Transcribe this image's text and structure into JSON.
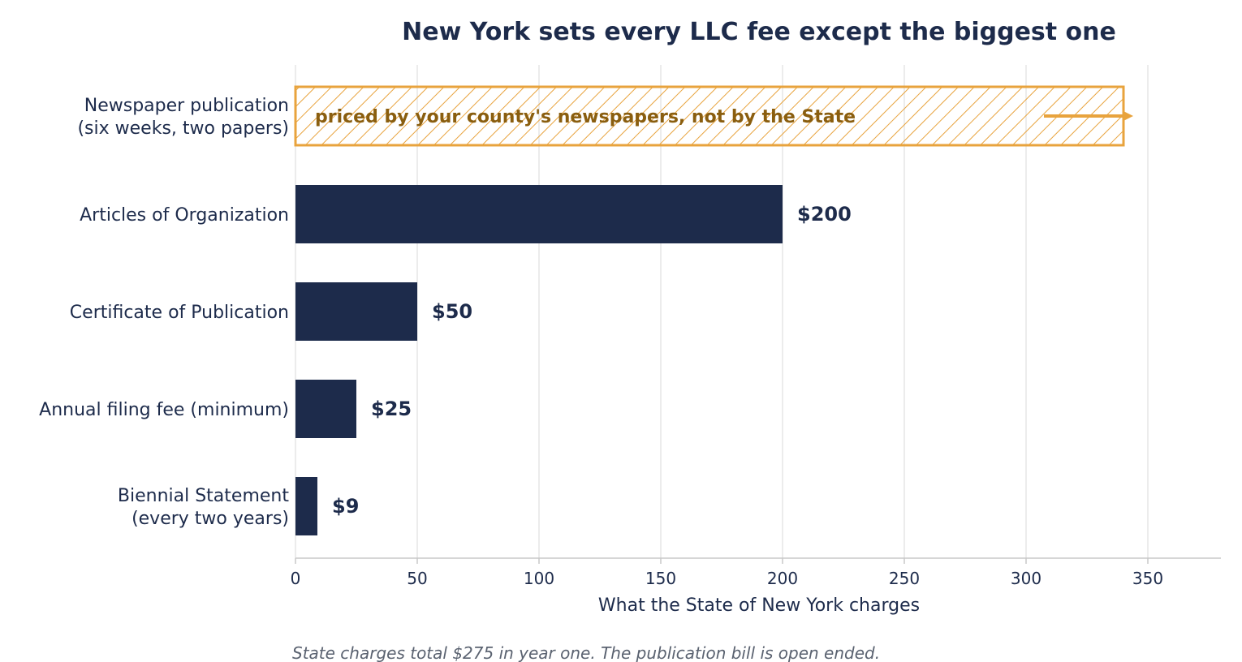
{
  "chart_data": {
    "type": "bar",
    "orientation": "horizontal",
    "title": "New York sets every LLC fee except the biggest one",
    "xlabel": "What the State of New York charges",
    "ylabel": "",
    "xlim": [
      0,
      380
    ],
    "xticks": [
      0,
      50,
      100,
      150,
      200,
      250,
      300,
      350
    ],
    "grid": "vertical",
    "categories": [
      "Newspaper publication\n(six weeks, two papers)",
      "Articles of Organization",
      "Certificate of Publication",
      "Annual filing fee (minimum)",
      "Biennial Statement\n(every two years)"
    ],
    "values": [
      null,
      200,
      50,
      25,
      9
    ],
    "value_labels": [
      "",
      "$200",
      "$50",
      "$25",
      "$9"
    ],
    "open_ended_bar": {
      "category_index": 0,
      "label": "priced by your county's newspapers, not by the State",
      "extends_to": 340,
      "style": "hatched"
    },
    "footnote": "State charges total $275 in year one. The publication bill is open ended."
  },
  "colors": {
    "bar": "#1d2b4b",
    "text": "#1d2b4b",
    "accent": "#e8a33d",
    "annotation_text": "#8a5e0f",
    "grid": "#e6e6e6",
    "axis": "#c8c8c8",
    "footnote": "#5a6270"
  }
}
